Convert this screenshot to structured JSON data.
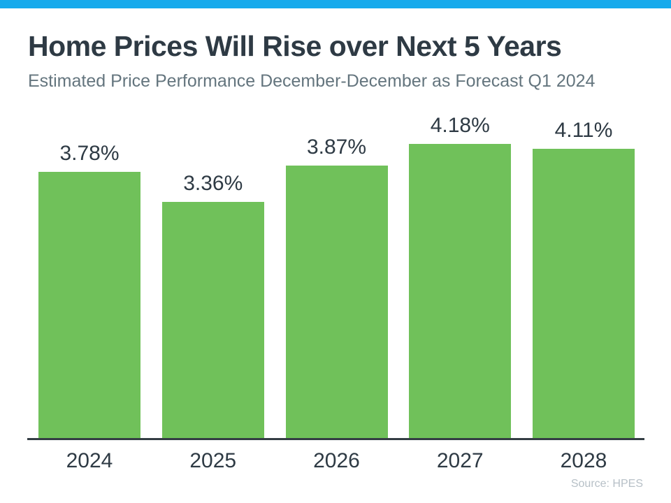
{
  "chart_data": {
    "type": "bar",
    "title": "Home Prices Will Rise over Next 5 Years",
    "subtitle": "Estimated Price Performance December-December as Forecast Q1 2024",
    "categories": [
      "2024",
      "2025",
      "2026",
      "2027",
      "2028"
    ],
    "values": [
      3.78,
      3.36,
      3.87,
      4.18,
      4.11
    ],
    "labels": [
      "3.78%",
      "3.36%",
      "3.87%",
      "4.18%",
      "4.11%"
    ],
    "xlabel": "",
    "ylabel": "",
    "ylim": [
      0,
      4.7
    ],
    "grid": false,
    "legend": "none",
    "data_labels": "above-bars",
    "source": "Source: HPES"
  },
  "colors": {
    "accent_stripe": "#16aaec",
    "bar_fill": "#70c15a",
    "title_text": "#2e3a44",
    "subtitle_text": "#64757e",
    "label_text": "#2e3a44",
    "axis_line": "#343d44",
    "source_text": "#b7c0c7",
    "background": "#ffffff"
  }
}
